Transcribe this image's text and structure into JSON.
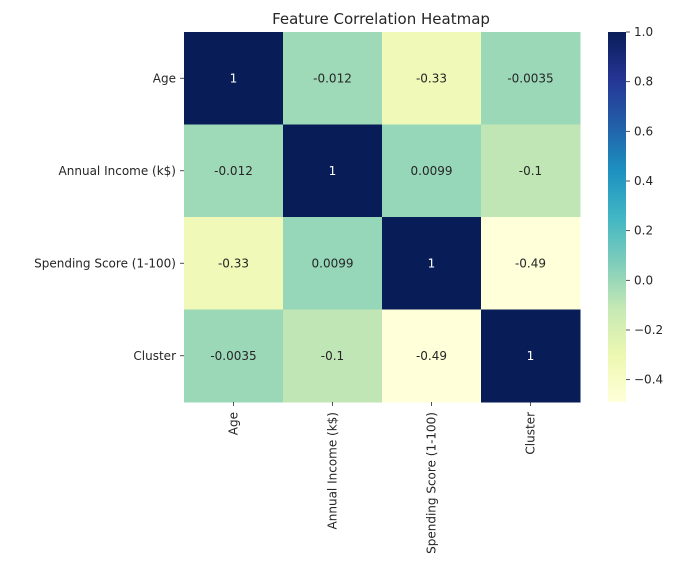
{
  "chart_data": {
    "type": "heatmap",
    "title": "Feature Correlation Heatmap",
    "xlabel": "",
    "ylabel": "",
    "x_categories": [
      "Age",
      "Annual Income (k$)",
      "Spending Score (1-100)",
      "Cluster"
    ],
    "y_categories": [
      "Age",
      "Annual Income (k$)",
      "Spending Score (1-100)",
      "Cluster"
    ],
    "values": [
      [
        1,
        -0.012,
        -0.33,
        -0.0035
      ],
      [
        -0.012,
        1,
        0.0099,
        -0.1
      ],
      [
        -0.33,
        0.0099,
        1,
        -0.49
      ],
      [
        -0.0035,
        -0.1,
        -0.49,
        1
      ]
    ],
    "annotations": [
      [
        "1",
        "-0.012",
        "-0.33",
        "-0.0035"
      ],
      [
        "-0.012",
        "1",
        "0.0099",
        "-0.1"
      ],
      [
        "-0.33",
        "0.0099",
        "1",
        "-0.49"
      ],
      [
        "-0.0035",
        "-0.1",
        "-0.49",
        "1"
      ]
    ],
    "colormap": "YlGnBu",
    "colorbar": {
      "vmin": -0.49,
      "vmax": 1.0,
      "ticks": [
        1.0,
        0.8,
        0.6,
        0.4,
        0.2,
        0.0,
        -0.2,
        -0.4
      ],
      "tick_labels": [
        "1.0",
        "0.8",
        "0.6",
        "0.4",
        "0.2",
        "0.0",
        "−0.2",
        "−0.4"
      ]
    },
    "colors": [
      "#ffffd9",
      "#edf8b1",
      "#c7e9b4",
      "#7fcdbb",
      "#41b6c4",
      "#1d91c0",
      "#225ea8",
      "#253494",
      "#081d58"
    ],
    "grid": false,
    "legend": "none"
  }
}
